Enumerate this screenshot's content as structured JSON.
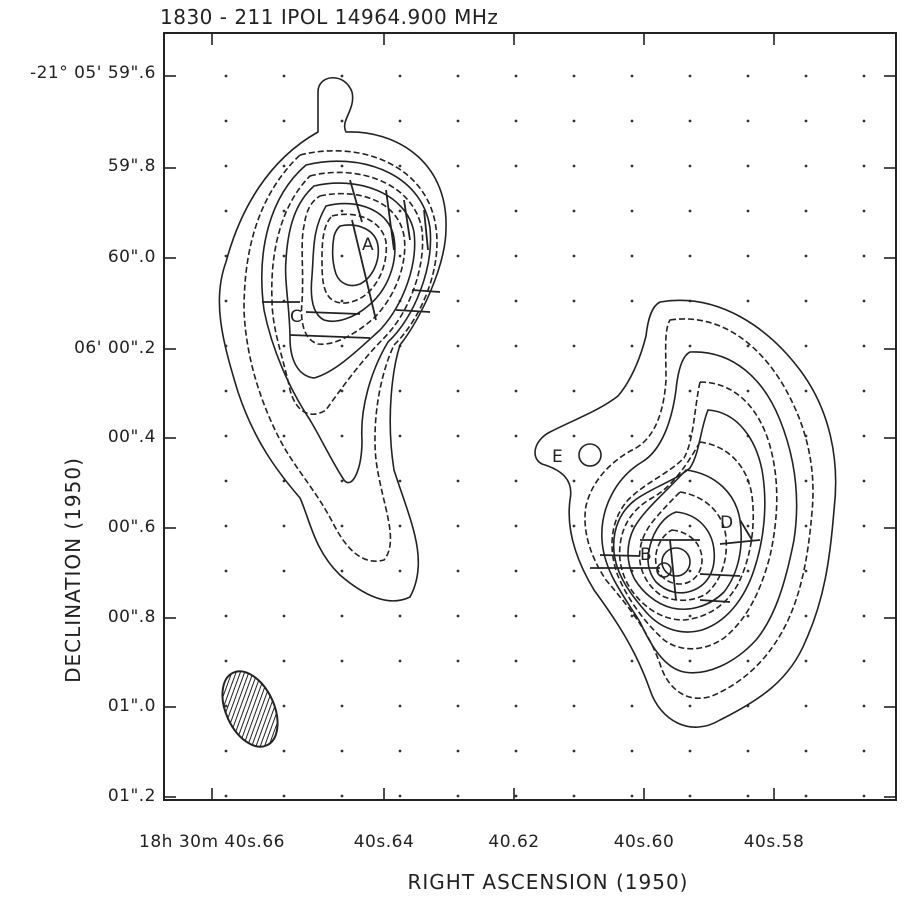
{
  "chart_data": {
    "type": "contour",
    "title": "1830 - 211   IPOL  14964.900 MHz",
    "xlabel": "RIGHT   ASCENSION  (1950)",
    "ylabel": "DECLINATION  (1950)",
    "x_ticks": [
      "18h 30m 40s.66",
      "40s.64",
      "40.62",
      "40s.60",
      "40s.58"
    ],
    "y_ticks": [
      "-21° 05' 59\".6",
      "59\".8",
      "60\".0",
      "06' 00\".2",
      "00\".4",
      "00\".6",
      "00\".8",
      "01\".0",
      "01\".2"
    ],
    "components": [
      "A",
      "B",
      "C",
      "D",
      "E"
    ],
    "grid": "dotted"
  }
}
